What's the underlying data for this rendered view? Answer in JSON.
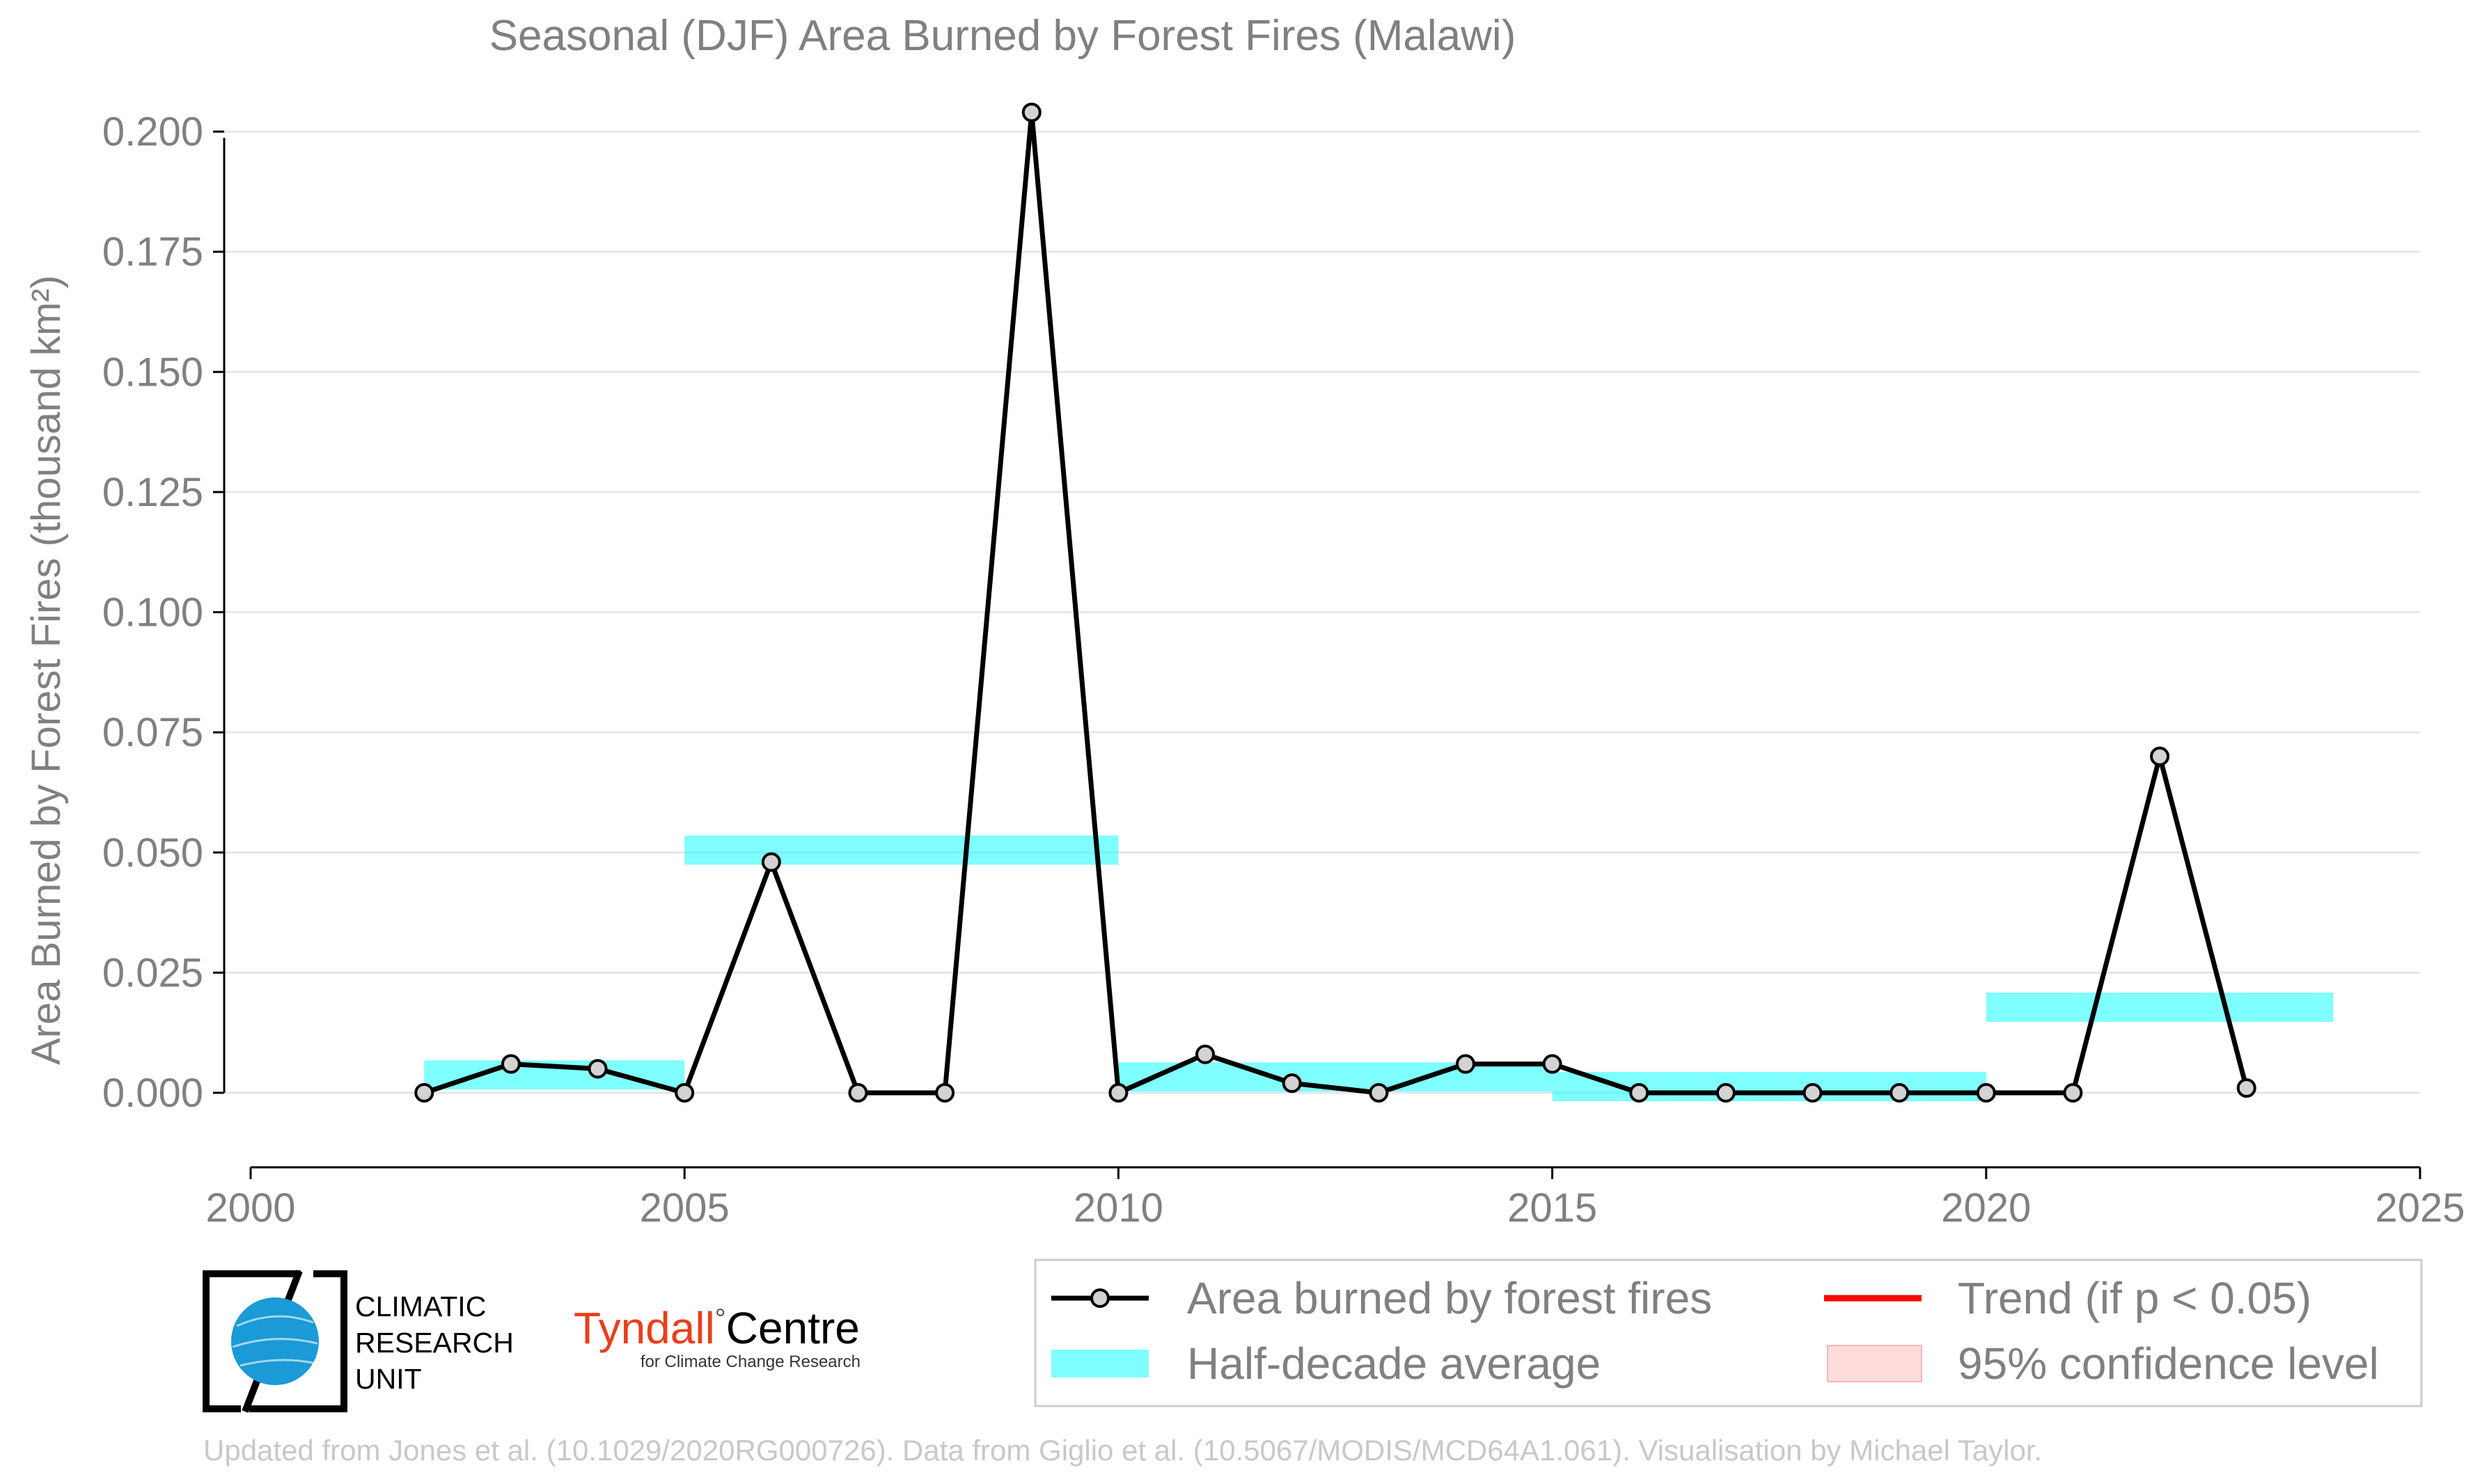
{
  "chart_data": {
    "type": "line",
    "title": "Seasonal (DJF) Area Burned by Forest Fires (Malawi)",
    "ylabel": "Area Burned by Forest Fires (thousand km²)",
    "xlabel": "",
    "xlim": [
      2000,
      2025
    ],
    "ylim": [
      -0.0155,
      0.2045
    ],
    "x_ticks": [
      2000,
      2005,
      2010,
      2015,
      2020,
      2025
    ],
    "x_tick_labels": [
      "2000",
      "2005",
      "2010",
      "2015",
      "2020",
      "2025"
    ],
    "y_ticks": [
      0.0,
      0.025,
      0.05,
      0.075,
      0.1,
      0.125,
      0.15,
      0.175,
      0.2
    ],
    "y_tick_labels": [
      "0.000",
      "0.025",
      "0.050",
      "0.075",
      "0.100",
      "0.125",
      "0.150",
      "0.175",
      "0.200"
    ],
    "grid": "horizontal",
    "legend_placement": "bottom-right",
    "series": [
      {
        "name": "Area burned by forest fires",
        "type": "line",
        "color": "#000000",
        "marker_fill": "#d3d3d3",
        "x": [
          2002,
          2003,
          2004,
          2005,
          2006,
          2007,
          2008,
          2009,
          2010,
          2011,
          2012,
          2013,
          2014,
          2015,
          2016,
          2017,
          2018,
          2019,
          2020,
          2021,
          2022,
          2023
        ],
        "values": [
          0.0,
          0.006,
          0.005,
          0.0,
          0.048,
          0.0,
          0.0,
          0.204,
          0.0,
          0.008,
          0.002,
          0.0,
          0.006,
          0.006,
          0.0,
          0.0,
          0.0,
          0.0,
          0.0,
          0.0,
          0.07,
          0.001
        ]
      },
      {
        "name": "Half-decade average",
        "type": "step-band",
        "color": "#00ffff",
        "segments": [
          {
            "x_start": 2002,
            "x_end": 2005,
            "value": 0.0037
          },
          {
            "x_start": 2005,
            "x_end": 2010,
            "value": 0.0505
          },
          {
            "x_start": 2010,
            "x_end": 2015,
            "value": 0.0033
          },
          {
            "x_start": 2015,
            "x_end": 2020,
            "value": 0.0013
          },
          {
            "x_start": 2020,
            "x_end": 2024,
            "value": 0.0178
          }
        ]
      },
      {
        "name": "Trend (if p < 0.05)",
        "type": "line",
        "color": "#ff0000"
      },
      {
        "name": "95% confidence level",
        "type": "area",
        "color": "#ffdcdc"
      }
    ],
    "legend": [
      {
        "label": "Area burned by forest fires",
        "symbol": "line-marker"
      },
      {
        "label": "Trend (if p < 0.05)",
        "symbol": "red-line"
      },
      {
        "label": "Half-decade average",
        "symbol": "cyan-band"
      },
      {
        "label": "95% confidence level",
        "symbol": "pink-patch"
      }
    ]
  },
  "logos": {
    "cru_line1": "CLIMATIC",
    "cru_line2": "RESEARCH",
    "cru_line3": "UNIT",
    "tyndall_word": "Tyndall",
    "tyndall_degree": "°",
    "tyndall_centre": "Centre",
    "tyndall_sub": "for Climate Change Research"
  },
  "credit": "Updated from Jones et al. (10.1029/2020RG000726). Data from Giglio et al. (10.5067/MODIS/MCD64A1.061). Visualisation by Michael Taylor."
}
